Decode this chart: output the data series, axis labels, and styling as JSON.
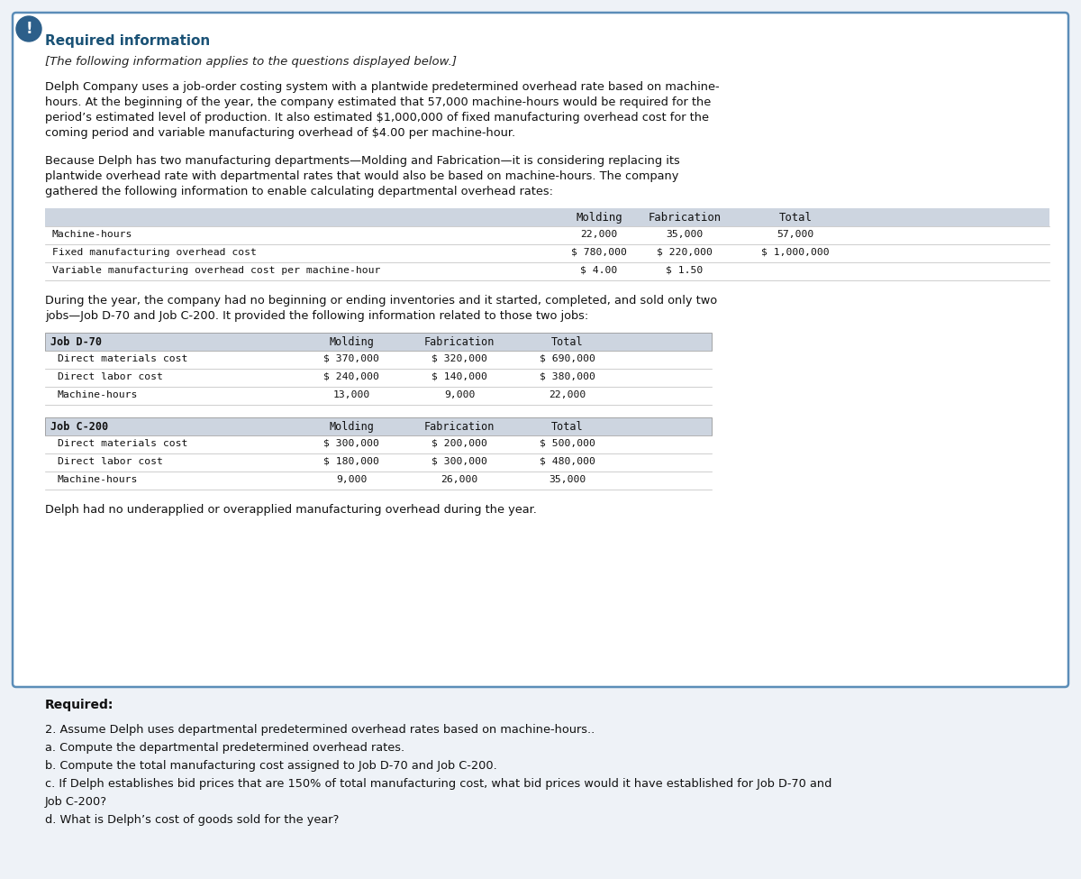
{
  "bg_color": "#eef2f7",
  "box_bg": "#ffffff",
  "box_border": "#5b8db8",
  "icon_bg": "#2c5f8a",
  "required_info_color": "#1a5276",
  "required_info_text": "Required information",
  "italic_text": "[The following information applies to the questions displayed below.]",
  "paragraph1_lines": [
    "Delph Company uses a job-order costing system with a plantwide predetermined overhead rate based on machine-",
    "hours. At the beginning of the year, the company estimated that 57,000 machine-hours would be required for the",
    "period’s estimated level of production. It also estimated $1,000,000 of fixed manufacturing overhead cost for the",
    "coming period and variable manufacturing overhead of $4.00 per machine-hour."
  ],
  "paragraph2_lines": [
    "Because Delph has two manufacturing departments—Molding and Fabrication—it is considering replacing its",
    "plantwide overhead rate with departmental rates that would also be based on machine-hours. The company",
    "gathered the following information to enable calculating departmental overhead rates:"
  ],
  "table1_header": [
    "",
    "Molding",
    "Fabrication",
    "Total"
  ],
  "table1_rows": [
    [
      "Machine-hours",
      "22,000",
      "35,000",
      "57,000"
    ],
    [
      "Fixed manufacturing overhead cost",
      "$ 780,000",
      "$ 220,000",
      "$ 1,000,000"
    ],
    [
      "Variable manufacturing overhead cost per machine-hour",
      "$ 4.00",
      "$ 1.50",
      ""
    ]
  ],
  "paragraph3_lines": [
    "During the year, the company had no beginning or ending inventories and it started, completed, and sold only two",
    "jobs—Job D-70 and Job C-200. It provided the following information related to those two jobs:"
  ],
  "table2_header": [
    "Job D-70",
    "Molding",
    "Fabrication",
    "Total"
  ],
  "table2_rows": [
    [
      "Direct materials cost",
      "$ 370,000",
      "$ 320,000",
      "$ 690,000"
    ],
    [
      "Direct labor cost",
      "$ 240,000",
      "$ 140,000",
      "$ 380,000"
    ],
    [
      "Machine-hours",
      "13,000",
      "9,000",
      "22,000"
    ]
  ],
  "table3_header": [
    "Job C-200",
    "Molding",
    "Fabrication",
    "Total"
  ],
  "table3_rows": [
    [
      "Direct materials cost",
      "$ 300,000",
      "$ 200,000",
      "$ 500,000"
    ],
    [
      "Direct labor cost",
      "$ 180,000",
      "$ 300,000",
      "$ 480,000"
    ],
    [
      "Machine-hours",
      "9,000",
      "26,000",
      "35,000"
    ]
  ],
  "paragraph4": "Delph had no underapplied or overapplied manufacturing overhead during the year.",
  "required_label": "Required:",
  "required_items": [
    "2. Assume Delph uses departmental predetermined overhead rates based on machine-hours..",
    "a. Compute the departmental predetermined overhead rates.",
    "b. Compute the total manufacturing cost assigned to Job D-70 and Job C-200.",
    "c. If Delph establishes bid prices that are 150% of total manufacturing cost, what bid prices would it have established for Job D-70 and",
    "Job C-200?",
    "d. What is Delph’s cost of goods sold for the year?"
  ],
  "table_header_bg": "#cdd5e0",
  "table_row_bg": "#ffffff",
  "mono_font": "monospace",
  "sans_font": "DejaVu Sans"
}
